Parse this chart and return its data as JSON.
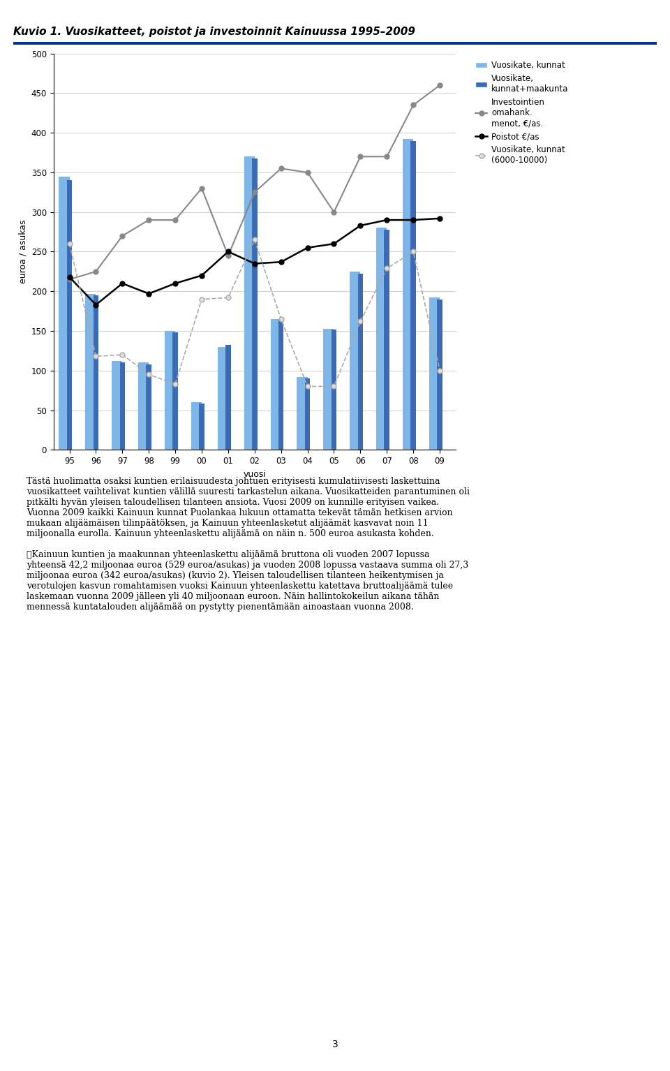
{
  "title": "Kuvio 1. Vuosikatteet, poistot ja investoinnit Kainuussa 1995–2009",
  "years": [
    "95",
    "96",
    "97",
    "98",
    "99",
    "00",
    "01",
    "02",
    "03",
    "04",
    "05",
    "06",
    "07",
    "08",
    "09"
  ],
  "vuosikate_kunnat": [
    345,
    197,
    112,
    110,
    150,
    60,
    130,
    370,
    165,
    92,
    153,
    225,
    280,
    392,
    192
  ],
  "vuosikate_kunnat_maa": [
    340,
    195,
    110,
    108,
    148,
    58,
    132,
    368,
    163,
    90,
    152,
    222,
    278,
    390,
    190
  ],
  "investointi": [
    215,
    225,
    270,
    290,
    290,
    330,
    245,
    325,
    355,
    350,
    300,
    370,
    370,
    435,
    460
  ],
  "poistot": [
    218,
    183,
    210,
    197,
    210,
    220,
    250,
    235,
    237,
    255,
    260,
    283,
    290,
    290,
    292
  ],
  "vuosikate_6000": [
    260,
    118,
    120,
    95,
    83,
    190,
    192,
    265,
    165,
    80,
    80,
    162,
    229,
    250,
    100
  ],
  "bar_light_color": "#7EB6E8",
  "bar_dark_color": "#3B6BB5",
  "line_invest_color": "#888888",
  "line_poistot_color": "#000000",
  "line_vuosi6000_color": "#AAAAAA",
  "ylabel": "euroa / asukas",
  "xlabel": "vuosi",
  "ylim": [
    0,
    500
  ],
  "yticks": [
    0,
    50,
    100,
    150,
    200,
    250,
    300,
    350,
    400,
    450,
    500
  ],
  "legend_labels": [
    "Vuosikate, kunnat",
    "Vuosikate,\nkunnat+maakunta",
    "Investointien\nomahank.\nmenot, €/as.",
    "Poistot €/as",
    "Vuosikate, kunnat\n(6000-10000)"
  ],
  "title_fontsize": 11,
  "axis_fontsize": 9,
  "tick_fontsize": 8.5
}
